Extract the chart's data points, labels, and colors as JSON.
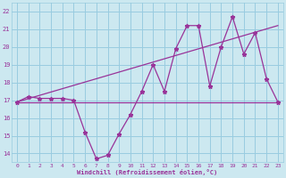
{
  "xlabel": "Windchill (Refroidissement éolien,°C)",
  "bg_color": "#cce8f0",
  "grid_color": "#99cce0",
  "line_color": "#993399",
  "x_data": [
    0,
    1,
    2,
    3,
    4,
    5,
    6,
    7,
    8,
    9,
    10,
    11,
    12,
    13,
    14,
    15,
    16,
    17,
    18,
    19,
    20,
    21,
    22,
    23
  ],
  "y_main": [
    16.9,
    17.2,
    17.1,
    17.1,
    17.1,
    17.0,
    15.2,
    13.7,
    13.9,
    15.1,
    16.2,
    17.5,
    19.0,
    17.5,
    19.9,
    21.2,
    21.2,
    17.8,
    20.0,
    21.7,
    19.6,
    20.8,
    18.2,
    16.9
  ],
  "trend1_x": [
    0,
    23
  ],
  "trend1_y": [
    16.9,
    16.9
  ],
  "trend2_x": [
    0,
    23
  ],
  "trend2_y": [
    16.9,
    21.2
  ],
  "ylim": [
    13.5,
    22.5
  ],
  "xlim": [
    -0.5,
    23.5
  ],
  "yticks": [
    14,
    15,
    16,
    17,
    18,
    19,
    20,
    21,
    22
  ],
  "xticks": [
    0,
    1,
    2,
    3,
    4,
    5,
    6,
    7,
    8,
    9,
    10,
    11,
    12,
    13,
    14,
    15,
    16,
    17,
    18,
    19,
    20,
    21,
    22,
    23
  ]
}
